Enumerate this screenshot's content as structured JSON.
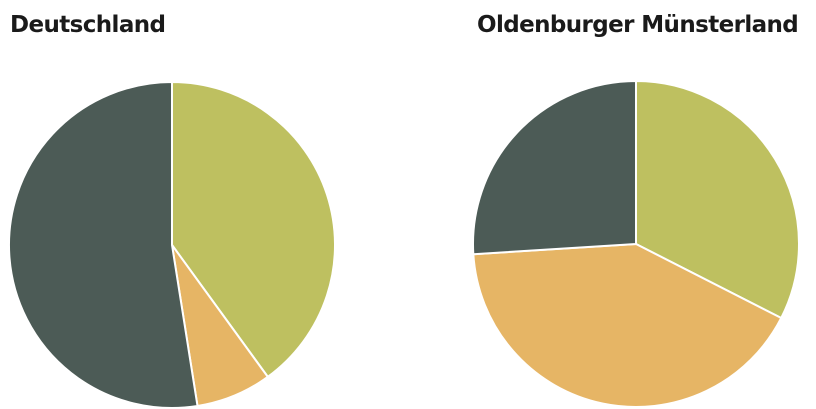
{
  "chart_data": [
    {
      "type": "pie",
      "title": "Deutschland",
      "slices": [
        {
          "value": 40,
          "color": "#bec060"
        },
        {
          "value": 7.5,
          "color": "#e6b565"
        },
        {
          "value": 52.5,
          "color": "#4c5b56"
        }
      ],
      "start_angle_deg": 0,
      "direction": "clockwise",
      "legend": "none"
    },
    {
      "type": "pie",
      "title": "Oldenburger Münsterland",
      "slices": [
        {
          "value": 32.5,
          "color": "#bec060"
        },
        {
          "value": 41.5,
          "color": "#e6b565"
        },
        {
          "value": 26,
          "color": "#4c5b56"
        }
      ],
      "start_angle_deg": 0,
      "direction": "clockwise",
      "legend": "none"
    }
  ]
}
